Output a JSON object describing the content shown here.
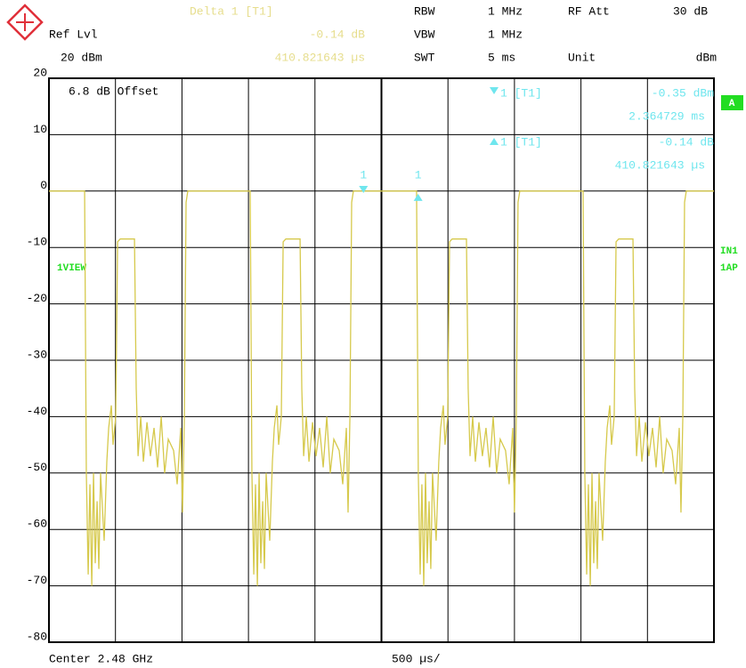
{
  "chart_data": {
    "type": "line",
    "header": {
      "delta_title": "Delta 1 [T1]",
      "delta_level": "-0.14 dB",
      "delta_position": "410.821643 µs",
      "ref_label": "Ref Lvl",
      "ref_value": "20 dBm",
      "rbw_label": "RBW",
      "rbw_value": "1 MHz",
      "vbw_label": "VBW",
      "vbw_value": "1 MHz",
      "swt_label": "SWT",
      "swt_value": "5 ms",
      "att_label": "RF Att",
      "att_value": "30 dB",
      "unit_label": "Unit",
      "unit_value": "dBm"
    },
    "annotations": {
      "offset": "6.8 dB Offset",
      "view": "1VIEW",
      "trace_mode": "A",
      "input": "IN1",
      "detector": "1AP",
      "center": "Center 2.48 GHz",
      "span_per_div": "500 µs/"
    },
    "color": "#d6c94c",
    "ylim": [
      -80,
      20
    ],
    "yticks": [
      20,
      10,
      0,
      -10,
      -20,
      -30,
      -40,
      -50,
      -60,
      -70,
      -80
    ],
    "xlim": [
      0,
      5
    ],
    "xticks": [
      0,
      0.5,
      1,
      1.5,
      2,
      2.5,
      3,
      3.5,
      4,
      4.5,
      5
    ],
    "grid": true,
    "x": [
      0,
      0.268,
      0.281,
      0.295,
      0.308,
      0.322,
      0.335,
      0.348,
      0.362,
      0.375,
      0.388,
      0.415,
      0.435,
      0.449,
      0.469,
      0.482,
      0.502,
      0.516,
      0.536,
      0.643,
      0.656,
      0.67,
      0.69,
      0.71,
      0.737,
      0.763,
      0.79,
      0.817,
      0.844,
      0.87,
      0.897,
      0.937,
      0.964,
      0.991,
      1.004,
      1.018,
      1.031,
      1.044,
      1.513,
      1.526,
      1.54,
      1.553,
      1.567,
      1.58,
      1.593,
      1.607,
      1.62,
      1.633,
      1.66,
      1.68,
      1.694,
      1.714,
      1.727,
      1.747,
      1.761,
      1.781,
      1.888,
      1.901,
      1.915,
      1.935,
      1.955,
      1.982,
      2.008,
      2.035,
      2.062,
      2.089,
      2.115,
      2.142,
      2.182,
      2.209,
      2.236,
      2.249,
      2.263,
      2.276,
      2.289,
      2.764,
      2.777,
      2.791,
      2.804,
      2.818,
      2.831,
      2.844,
      2.858,
      2.871,
      2.884,
      2.911,
      2.931,
      2.945,
      2.965,
      2.978,
      2.998,
      3.012,
      3.032,
      3.139,
      3.152,
      3.166,
      3.186,
      3.206,
      3.233,
      3.259,
      3.286,
      3.313,
      3.34,
      3.366,
      3.393,
      3.433,
      3.46,
      3.487,
      3.5,
      3.514,
      3.527,
      3.54,
      4.016,
      4.029,
      4.043,
      4.056,
      4.07,
      4.083,
      4.096,
      4.11,
      4.123,
      4.136,
      4.163,
      4.183,
      4.197,
      4.217,
      4.23,
      4.25,
      4.264,
      4.284,
      4.391,
      4.404,
      4.418,
      4.438,
      4.458,
      4.485,
      4.511,
      4.538,
      4.565,
      4.592,
      4.618,
      4.645,
      4.685,
      4.712,
      4.739,
      4.752,
      4.766,
      4.779,
      4.792,
      5
    ],
    "values": [
      0,
      0,
      -50,
      -68,
      -52,
      -70,
      -50,
      -66,
      -55,
      -67,
      -50,
      -62,
      -48,
      -42,
      -38,
      -45,
      -40,
      -9,
      -8.5,
      -8.5,
      -35,
      -47,
      -40,
      -48,
      -41,
      -47,
      -42,
      -49,
      -40,
      -50,
      -44,
      -46,
      -52,
      -42,
      -57,
      -40,
      -2,
      0,
      0,
      -50,
      -68,
      -52,
      -70,
      -50,
      -66,
      -55,
      -67,
      -50,
      -62,
      -48,
      -42,
      -38,
      -45,
      -40,
      -9,
      -8.5,
      -8.5,
      -35,
      -47,
      -40,
      -48,
      -41,
      -47,
      -42,
      -49,
      -40,
      -50,
      -44,
      -46,
      -52,
      -42,
      -57,
      -40,
      -2,
      0,
      0,
      -50,
      -68,
      -52,
      -70,
      -50,
      -66,
      -55,
      -67,
      -50,
      -62,
      -48,
      -42,
      -38,
      -45,
      -40,
      -9,
      -8.5,
      -8.5,
      -35,
      -47,
      -40,
      -48,
      -41,
      -47,
      -42,
      -49,
      -40,
      -50,
      -44,
      -46,
      -52,
      -42,
      -57,
      -40,
      -2,
      0,
      0,
      -50,
      -68,
      -52,
      -70,
      -50,
      -66,
      -55,
      -67,
      -50,
      -62,
      -48,
      -42,
      -38,
      -45,
      -40,
      -9,
      -8.5,
      -8.5,
      -35,
      -47,
      -40,
      -48,
      -41,
      -47,
      -42,
      -49,
      -40,
      -50,
      -44,
      -46,
      -52,
      -42,
      -57,
      -40,
      -2,
      0,
      0
    ],
    "markers": [
      {
        "label": "1",
        "info": "1 [T1]",
        "level": "-0.35 dBm",
        "position": "2.364729 ms",
        "x": 2.364729,
        "y": -0.35
      },
      {
        "label": "1",
        "info": "1 [T1]",
        "level": "-0.14 dB",
        "position": "410.821643 µs",
        "x": 2.775551,
        "y": -0.49
      }
    ]
  }
}
